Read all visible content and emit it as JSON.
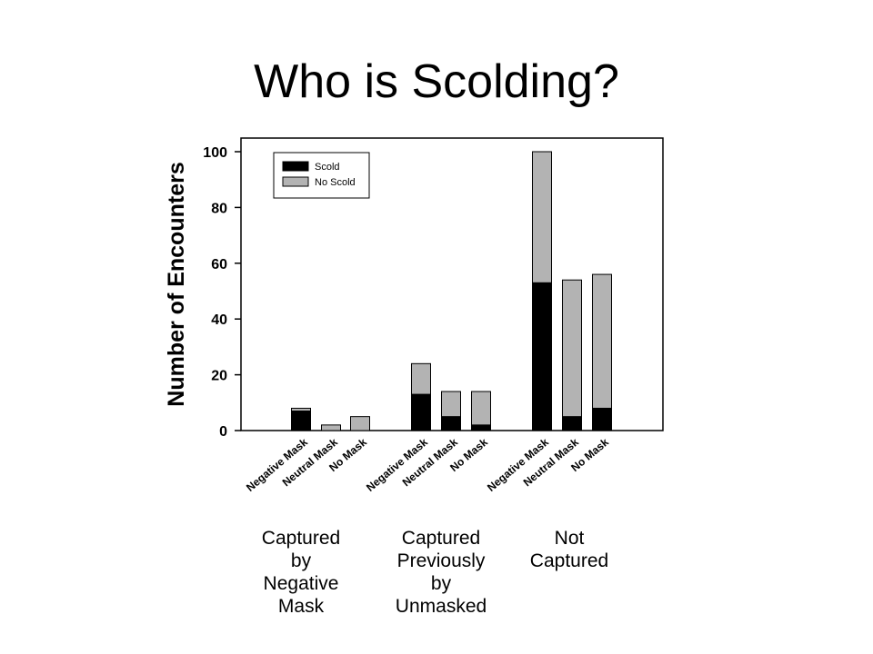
{
  "slide": {
    "title": "Who is Scolding?"
  },
  "chart_data": {
    "type": "bar",
    "stacked": true,
    "title": "",
    "xlabel": "",
    "ylabel": "Number of Encounters",
    "ylim": [
      0,
      100
    ],
    "yticks": [
      0,
      20,
      40,
      60,
      80,
      100
    ],
    "grid": false,
    "legend": {
      "position": "top-left",
      "entries": [
        "Scold",
        "No Scold"
      ]
    },
    "colors": {
      "Scold": "#000000",
      "No Scold": "#b3b3b3"
    },
    "categories": [
      "Negative Mask",
      "Neutral Mask",
      "No Mask",
      "Negative Mask",
      "Neutral Mask",
      "No Mask",
      "Negative Mask",
      "Neutral Mask",
      "No Mask"
    ],
    "groups": [
      {
        "label": [
          "Captured",
          "by",
          "Negative",
          "Mask"
        ],
        "category_indices": [
          0,
          1,
          2
        ]
      },
      {
        "label": [
          "Captured",
          "Previously",
          "by",
          "Unmasked"
        ],
        "category_indices": [
          3,
          4,
          5
        ]
      },
      {
        "label": [
          "Not",
          "Captured"
        ],
        "category_indices": [
          6,
          7,
          8
        ]
      }
    ],
    "series": [
      {
        "name": "Scold",
        "values": [
          7,
          0,
          0,
          13,
          5,
          2,
          53,
          5,
          8
        ]
      },
      {
        "name": "No Scold",
        "values": [
          1,
          2,
          5,
          11,
          9,
          12,
          47,
          49,
          48
        ]
      }
    ]
  }
}
